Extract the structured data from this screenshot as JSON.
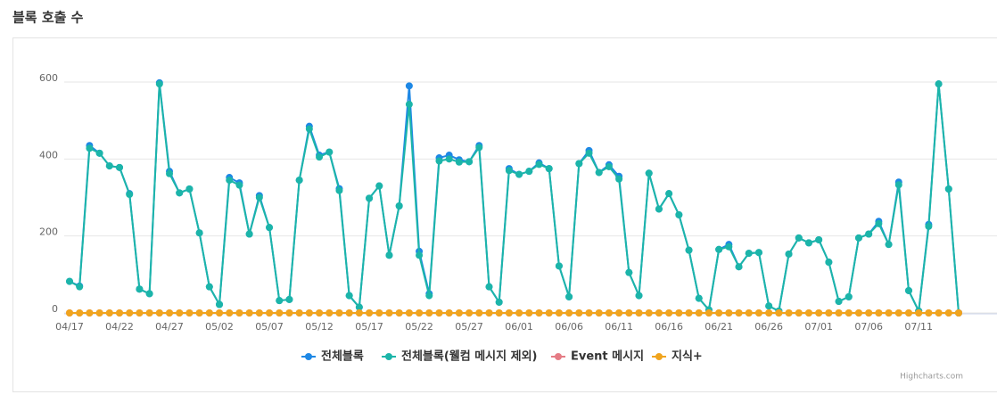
{
  "title": "블록 호출 수",
  "credits": "Highcharts.com",
  "chart_data": {
    "type": "line",
    "categories": [
      "04/17",
      null,
      null,
      null,
      null,
      "04/22",
      null,
      null,
      null,
      null,
      "04/27",
      null,
      null,
      null,
      null,
      "05/02",
      null,
      null,
      null,
      null,
      "05/07",
      null,
      null,
      null,
      null,
      "05/12",
      null,
      null,
      null,
      null,
      "05/17",
      null,
      null,
      null,
      null,
      "05/22",
      null,
      null,
      null,
      null,
      "05/27",
      null,
      null,
      null,
      null,
      "06/01",
      null,
      null,
      null,
      null,
      "06/06",
      null,
      null,
      null,
      null,
      "06/11",
      null,
      null,
      null,
      null,
      "06/16",
      null,
      null,
      null,
      null,
      "06/21",
      null,
      null,
      null,
      null,
      "06/26",
      null,
      null,
      null,
      null,
      "07/01",
      null,
      null,
      null,
      null,
      "07/06",
      null,
      null,
      null,
      null,
      "07/11",
      null,
      null,
      null,
      null
    ],
    "ylim": [
      0,
      600
    ],
    "yticks": [
      0,
      200,
      400,
      600
    ],
    "grid": true,
    "legend": "bottom",
    "series": [
      {
        "name": "전체블록",
        "color": "#1e88e5",
        "values": [
          82,
          70,
          435,
          415,
          382,
          378,
          310,
          62,
          50,
          598,
          368,
          312,
          322,
          208,
          68,
          22,
          352,
          338,
          205,
          305,
          222,
          32,
          35,
          345,
          485,
          410,
          418,
          323,
          45,
          15,
          298,
          330,
          150,
          278,
          590,
          160,
          50,
          403,
          410,
          398,
          393,
          435,
          68,
          28,
          375,
          360,
          368,
          390,
          375,
          122,
          42,
          388,
          422,
          365,
          385,
          355,
          105,
          45,
          363,
          270,
          310,
          255,
          163,
          38,
          8,
          165,
          178,
          120,
          155,
          157,
          18,
          5,
          153,
          195,
          182,
          190,
          132,
          30,
          42,
          195,
          205,
          238,
          178,
          340,
          58,
          5,
          230,
          595,
          322,
          0
        ]
      },
      {
        "name": "전체블록(웰컴 메시지 제외)",
        "color": "#1cb5a9",
        "values": [
          82,
          68,
          428,
          415,
          382,
          378,
          308,
          62,
          50,
          595,
          362,
          312,
          322,
          208,
          68,
          22,
          345,
          332,
          205,
          300,
          222,
          32,
          35,
          345,
          478,
          405,
          418,
          318,
          45,
          15,
          298,
          330,
          150,
          278,
          542,
          150,
          45,
          395,
          400,
          392,
          393,
          430,
          68,
          28,
          370,
          360,
          368,
          386,
          375,
          122,
          42,
          388,
          415,
          365,
          380,
          348,
          105,
          45,
          363,
          270,
          310,
          255,
          163,
          38,
          8,
          165,
          172,
          120,
          155,
          157,
          18,
          5,
          153,
          195,
          182,
          190,
          132,
          30,
          42,
          195,
          205,
          232,
          178,
          333,
          58,
          5,
          225,
          595,
          322,
          0
        ]
      },
      {
        "name": "Event 메시지",
        "color": "#e57c85",
        "values": [
          0,
          0,
          0,
          0,
          0,
          0,
          0,
          0,
          0,
          0,
          0,
          0,
          0,
          0,
          0,
          0,
          0,
          0,
          0,
          0,
          0,
          0,
          0,
          0,
          0,
          0,
          0,
          0,
          0,
          0,
          0,
          0,
          0,
          0,
          0,
          0,
          0,
          0,
          0,
          0,
          0,
          0,
          0,
          0,
          0,
          0,
          0,
          0,
          0,
          0,
          0,
          0,
          0,
          0,
          0,
          0,
          0,
          0,
          0,
          0,
          0,
          0,
          0,
          0,
          0,
          0,
          0,
          0,
          0,
          0,
          0,
          0,
          0,
          0,
          0,
          0,
          0,
          0,
          0,
          0,
          0,
          0,
          0,
          0,
          0,
          0,
          0,
          0,
          0,
          0
        ]
      },
      {
        "name": "지식+",
        "color": "#f0a41e",
        "values": [
          0,
          0,
          0,
          0,
          0,
          0,
          0,
          0,
          0,
          0,
          0,
          0,
          0,
          0,
          0,
          0,
          0,
          0,
          0,
          0,
          0,
          0,
          0,
          0,
          0,
          0,
          0,
          0,
          0,
          0,
          0,
          0,
          0,
          0,
          0,
          0,
          0,
          0,
          0,
          0,
          0,
          0,
          0,
          0,
          0,
          0,
          0,
          0,
          0,
          0,
          0,
          0,
          0,
          0,
          0,
          0,
          0,
          0,
          0,
          0,
          0,
          0,
          0,
          0,
          0,
          0,
          0,
          0,
          0,
          0,
          0,
          0,
          0,
          0,
          0,
          0,
          0,
          0,
          0,
          0,
          0,
          0,
          0,
          0,
          0,
          0,
          0,
          0,
          0,
          0
        ]
      }
    ]
  }
}
